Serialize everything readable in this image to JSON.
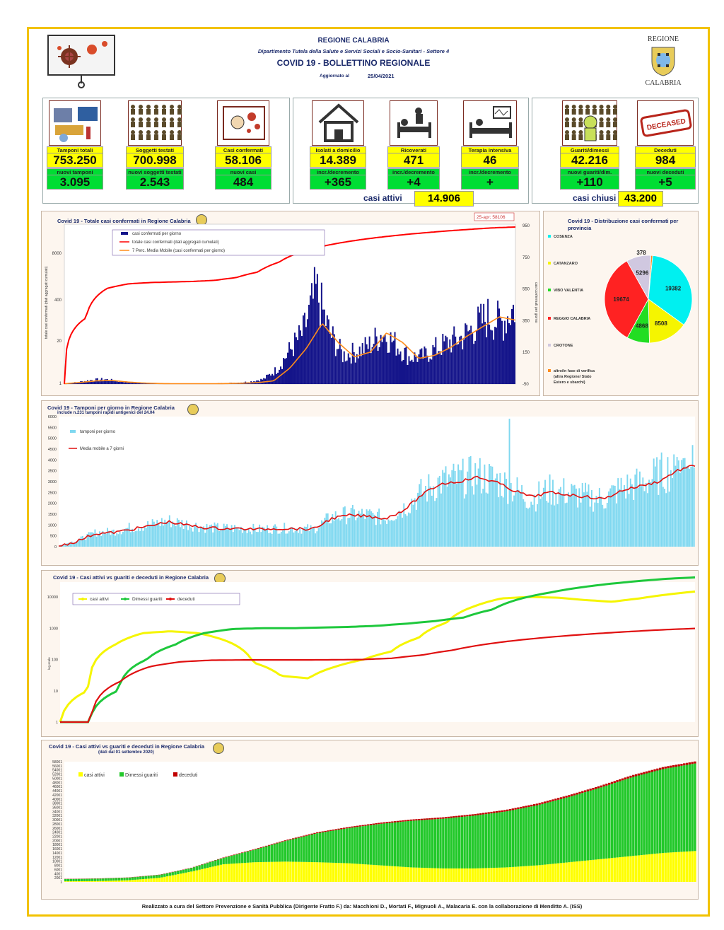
{
  "header": {
    "org": "REGIONE CALABRIA",
    "dept": "Dipartimento Tutela della Salute e Servizi Sociali e Socio-Sanitari - Settore 4",
    "title": "COVID 19 - BOLLETTINO REGIONALE",
    "updated_label": "Aggiornato al",
    "updated_date": "25/04/2021",
    "logo_top": "REGIONE",
    "logo_bottom": "CALABRIA"
  },
  "indicators": [
    {
      "label": "Tamponi totali",
      "value": "753.250",
      "sub_label": "nuovi tamponi",
      "sub_value": "3.095",
      "icon": "lab-test-icon"
    },
    {
      "label": "Soggetti testati",
      "value": "700.998",
      "sub_label": "nuovi soggetti testati",
      "sub_value": "2.543",
      "icon": "people-grid-icon"
    },
    {
      "label": "Casi confermati",
      "value": "58.106",
      "sub_label": "nuovi casi",
      "sub_value": "484",
      "icon": "virus-person-icon"
    },
    {
      "label": "Isolati a domicilio",
      "value": "14.389",
      "sub_label": "incr./decremento",
      "sub_value": "+365",
      "icon": "house-icon"
    },
    {
      "label": "Ricoverati",
      "value": "471",
      "sub_label": "incr./decremento",
      "sub_value": "+4",
      "icon": "hospital-bed-icon"
    },
    {
      "label": "Terapia intensiva",
      "value": "46",
      "sub_label": "incr./decremento",
      "sub_value": "+",
      "icon": "icu-monitor-icon"
    },
    {
      "label": "Guariti/dimessi",
      "value": "42.216",
      "sub_label": "nuovi guariti/dim.",
      "sub_value": "+110",
      "icon": "recovered-person-icon"
    },
    {
      "label": "Deceduti",
      "value": "984",
      "sub_label": "nuovi deceduti",
      "sub_value": "+5",
      "icon": "deceased-stamp-icon"
    }
  ],
  "deceased_stamp": "DECEASED",
  "active_cases": {
    "label": "casi attivi",
    "value": "14.906"
  },
  "closed_cases": {
    "label": "casi chiusi",
    "value": "43.200"
  },
  "chart1": {
    "title": "Covid 19 - Totale casi confermati in Regione Calabria",
    "ylabel_left": "totale casi confermati (dati aggregati cumulati)",
    "ylabel_right": "casi confermati per giorno",
    "annotation": "25-apr; 58106",
    "legend": [
      "casi confermati per giorno",
      "totale casi confermati (dati aggregati cumulati)",
      "7 Perc. Media Mobile (casi confermati per giorno)"
    ],
    "left_ticks": [
      "8000",
      "400",
      "20",
      "1"
    ],
    "right_ticks": [
      "950",
      "750",
      "550",
      "350",
      "150",
      "-50"
    ],
    "colors": {
      "bars": "#14148a",
      "total": "#ff0000",
      "mavg": "#ff8c1a"
    }
  },
  "chart2": {
    "title": "Covid 19 - Distribuzione casi confermati per provincia",
    "legend": [
      "COSENZA",
      "CATANZARO",
      "VIBO VALENTIA",
      "REGGIO CALABRIA",
      "CROTONE",
      "altro/in fase di verifica (altra Regione/ Stato Estero e sbarchi)"
    ],
    "labels": [
      "19382",
      "8508",
      "4868",
      "19674",
      "5296",
      "378"
    ]
  },
  "chart3": {
    "title": "Covid 19 - Tamponi per giorno in Regione Calabria",
    "subtitle": "include n.231 tamponi rapidi antigenici del 24.04",
    "legend": [
      "tamponi per giorno",
      "Media mobile a 7 giorni"
    ],
    "y_ticks": [
      "6000",
      "5500",
      "5000",
      "4500",
      "4000",
      "3500",
      "3000",
      "2500",
      "2000",
      "1500",
      "1000",
      "500",
      "0"
    ],
    "colors": {
      "bars": "#7fd8f0",
      "mavg": "#e01010"
    }
  },
  "chart4": {
    "title": "Covid 19 - Casi attivi vs guariti e deceduti in Regione Calabria",
    "legend": [
      "casi attivi",
      "Dimessi guariti",
      "deceduti"
    ],
    "ylabel": "log scale",
    "y_ticks": [
      "10000",
      "1000",
      "100",
      "10",
      "1"
    ],
    "colors": {
      "active": "#f5f500",
      "recovered": "#1ec83c",
      "deceased": "#e01010"
    }
  },
  "chart5": {
    "title": "Covid 19 - Casi attivi vs guariti e deceduti in Regione Calabria",
    "subtitle": "(dati dal 01 settembre 2020)",
    "legend": [
      "casi attivi",
      "Dimessi guariti",
      "deceduti"
    ],
    "y_ticks": [
      "58001",
      "56001",
      "54001",
      "52001",
      "50001",
      "48001",
      "46001",
      "44001",
      "42001",
      "40001",
      "38001",
      "36001",
      "34001",
      "32001",
      "30001",
      "28001",
      "26001",
      "24001",
      "22001",
      "20001",
      "18001",
      "16001",
      "14001",
      "12001",
      "10001",
      "8001",
      "6001",
      "4001",
      "2001",
      "1"
    ],
    "colors": {
      "active": "#ffff00",
      "recovered": "#22c82a",
      "deceased": "#c00000"
    }
  },
  "chart_data": [
    {
      "type": "bar",
      "title": "Covid 19 - Totale casi confermati in Regione Calabria",
      "note": "combined bar (daily cases) + line (cumulative, log left axis) + line (7-day moving average)",
      "x_range": [
        "2020-03",
        "2021-04-25"
      ],
      "series": [
        {
          "name": "casi confermati per giorno",
          "values": [
            2,
            12,
            25,
            30,
            18,
            10,
            5,
            3,
            2,
            2,
            2,
            3,
            5,
            8,
            15,
            30,
            90,
            210,
            320,
            580,
            320,
            180,
            200,
            240,
            320,
            250,
            170,
            170,
            220,
            260,
            290,
            360,
            420,
            380,
            484
          ]
        },
        {
          "name": "totale casi confermati (dati aggregati cumulati)",
          "values": [
            1,
            100,
            800,
            1100,
            1200,
            1250,
            1300,
            1400,
            1700,
            2500,
            5000,
            10000,
            15000,
            20000,
            25000,
            30000,
            35000,
            40000,
            45000,
            50000,
            55000,
            58106
          ]
        },
        {
          "name": "7 Perc. Media Mobile (casi confermati per giorno)",
          "values": [
            2,
            10,
            20,
            22,
            12,
            6,
            3,
            2,
            2,
            2,
            3,
            5,
            9,
            20,
            100,
            220,
            380,
            260,
            170,
            200,
            320,
            260,
            160,
            180,
            230,
            300,
            360,
            420,
            400
          ]
        }
      ],
      "left_axis": "log",
      "right_ylim": [
        -50,
        950
      ]
    },
    {
      "type": "pie",
      "title": "Covid 19 - Distribuzione casi confermati per provincia",
      "categories": [
        "COSENZA",
        "CATANZARO",
        "VIBO VALENTIA",
        "REGGIO CALABRIA",
        "CROTONE",
        "altro/in fase di verifica (altra Regione/ Stato Estero e sbarchi)"
      ],
      "values": [
        19382,
        8508,
        4868,
        19674,
        5296,
        378
      ],
      "colors": [
        "#00f0f0",
        "#f5f500",
        "#22dd22",
        "#ff2222",
        "#d0c8e0",
        "#ff8c1a"
      ]
    },
    {
      "type": "bar",
      "title": "Covid 19 - Tamponi per giorno in Regione Calabria",
      "subtitle": "include n.231 tamponi rapidi antigenici del 24.04",
      "ylim": [
        0,
        6000
      ],
      "series": [
        {
          "name": "tamponi per giorno",
          "values": [
            50,
            300,
            650,
            700,
            900,
            1000,
            1200,
            1050,
            900,
            850,
            850,
            800,
            850,
            850,
            800,
            1350,
            1500,
            1450,
            1300,
            1800,
            2500,
            3000,
            3100,
            3300,
            3100,
            2700,
            2200,
            2600,
            2500,
            2300,
            2200,
            2700,
            2900,
            3300,
            3700,
            3800
          ]
        },
        {
          "name": "Media mobile a 7 giorni",
          "values": [
            30,
            250,
            600,
            650,
            800,
            950,
            1150,
            1000,
            880,
            840,
            830,
            800,
            840,
            830,
            800,
            1300,
            1450,
            1400,
            1300,
            1700,
            2400,
            2900,
            3000,
            3200,
            3000,
            2600,
            2300,
            2500,
            2400,
            2300,
            2200,
            2600,
            2800,
            3000,
            3500,
            3750
          ]
        }
      ]
    },
    {
      "type": "line",
      "title": "Covid 19 - Casi attivi vs guariti e deceduti in Regione Calabria",
      "y_scale": "log",
      "ylim": [
        1,
        30000
      ],
      "series": [
        {
          "name": "casi attivi",
          "values": [
            1,
            10,
            300,
            700,
            800,
            700,
            400,
            80,
            30,
            25,
            60,
            100,
            180,
            500,
            1500,
            5000,
            9000,
            10000,
            9500,
            8000,
            7000,
            9000,
            12000,
            14906
          ]
        },
        {
          "name": "Dimessi guariti",
          "values": [
            1,
            1,
            10,
            100,
            300,
            700,
            950,
            1000,
            1000,
            1050,
            1100,
            1200,
            1400,
            1700,
            2200,
            4000,
            9000,
            14000,
            20000,
            26000,
            32000,
            38000,
            42216
          ]
        },
        {
          "name": "deceduti",
          "values": [
            1,
            1,
            20,
            60,
            85,
            95,
            97,
            97,
            97,
            98,
            100,
            110,
            140,
            200,
            300,
            400,
            500,
            600,
            700,
            800,
            900,
            984
          ]
        }
      ]
    },
    {
      "type": "area",
      "title": "Covid 19 - Casi attivi vs guariti e deceduti in Regione Calabria",
      "subtitle": "(dati dal 01 settembre 2020)",
      "ylim": [
        1,
        58001
      ],
      "series": [
        {
          "name": "casi attivi",
          "values": [
            300,
            400,
            800,
            2000,
            5000,
            8500,
            9500,
            9800,
            9500,
            9000,
            8000,
            7000,
            6500,
            6500,
            7000,
            8000,
            9500,
            11000,
            12500,
            14000,
            14906
          ]
        },
        {
          "name": "Dimessi guariti",
          "values": [
            1100,
            1150,
            1250,
            1400,
            1700,
            3000,
            6000,
            10000,
            14000,
            17000,
            20000,
            22500,
            24000,
            25500,
            27000,
            29000,
            31500,
            34500,
            38000,
            40500,
            42216
          ]
        },
        {
          "name": "deceduti",
          "values": [
            100,
            105,
            110,
            120,
            140,
            200,
            270,
            360,
            450,
            520,
            580,
            630,
            680,
            730,
            780,
            830,
            880,
            920,
            950,
            970,
            984
          ]
        }
      ]
    }
  ],
  "footer": "Realizzato a cura del Settore Prevenzione e Sanità Pubblica (Dirigente Fratto F.) da:  Macchioni D., Mortati F., Mignuoli A., Malacaria E. con la collaborazione di Menditto A. (ISS)"
}
